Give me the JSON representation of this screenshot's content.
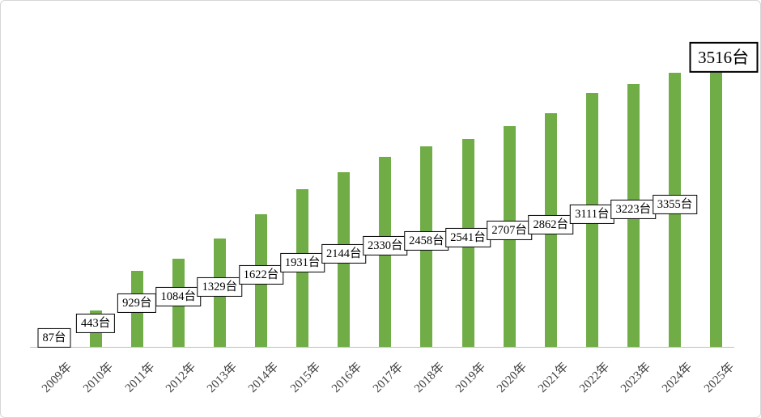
{
  "chart_data": {
    "type": "bar",
    "title": "",
    "categories": [
      "2009年",
      "2010年",
      "2011年",
      "2012年",
      "2013年",
      "2014年",
      "2015年",
      "2016年",
      "2017年",
      "2018年",
      "2019年",
      "2020年",
      "2021年",
      "2022年",
      "2023年",
      "2024年",
      "2025年"
    ],
    "values": [
      87,
      443,
      929,
      1084,
      1329,
      1622,
      1931,
      2144,
      2330,
      2458,
      2541,
      2707,
      2862,
      3111,
      3223,
      3355,
      3516
    ],
    "data_labels": [
      "87台",
      "443台",
      "929台",
      "1084台",
      "1329台",
      "1622台",
      "1931台",
      "2144台",
      "2330台",
      "2458台",
      "2541台",
      "2707台",
      "2862台",
      "3111台",
      "3223台",
      "3355台",
      "3516台"
    ],
    "unit": "台",
    "xlabel": "",
    "ylabel": "",
    "ylim": [
      0,
      3600
    ],
    "grid": false,
    "legend": false,
    "label_position": "inside-center",
    "highlight_last_label": true,
    "colors": {
      "bar": "#70AD47",
      "label_box_bg": "#FFFFFF",
      "label_box_border": "#000000",
      "axis_line": "#BFBFBF",
      "tick_text": "#404040"
    }
  }
}
